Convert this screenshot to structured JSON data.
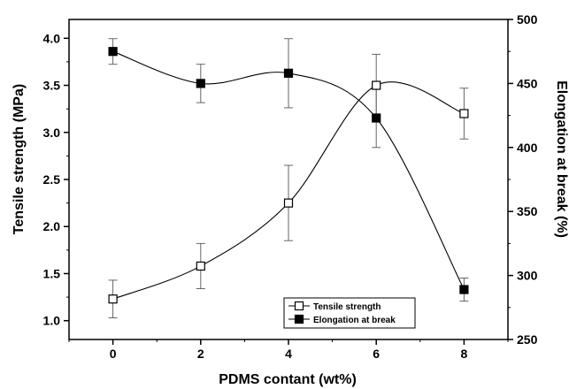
{
  "chart_data": {
    "type": "line",
    "xlabel": "PDMS contant (wt%)",
    "ylabel": "Tensile strength (MPa)",
    "y2label": "Elongation at break (%)",
    "x": [
      0,
      2,
      4,
      6,
      8
    ],
    "xlim": [
      -1,
      9
    ],
    "ylim": [
      0.8,
      4.2
    ],
    "y2lim": [
      250,
      500
    ],
    "xticks": [
      "0",
      "2",
      "4",
      "6",
      "8"
    ],
    "yticks": [
      "1.0",
      "1.5",
      "2.0",
      "2.5",
      "3.0",
      "3.5",
      "4.0"
    ],
    "y2ticks": [
      "250",
      "300",
      "350",
      "400",
      "450",
      "500"
    ],
    "legend_position": "bottom-right",
    "grid": false,
    "series": [
      {
        "name": "Tensile strength",
        "axis": "left",
        "marker": "open-square",
        "values": [
          1.23,
          1.58,
          2.25,
          3.5,
          3.2
        ],
        "errors": [
          0.2,
          0.24,
          0.4,
          0.33,
          0.27
        ]
      },
      {
        "name": "Elongation at break",
        "axis": "right",
        "marker": "filled-square",
        "values": [
          475,
          450,
          458,
          423,
          289
        ],
        "errors": [
          10,
          15,
          27,
          23,
          9
        ]
      }
    ]
  }
}
